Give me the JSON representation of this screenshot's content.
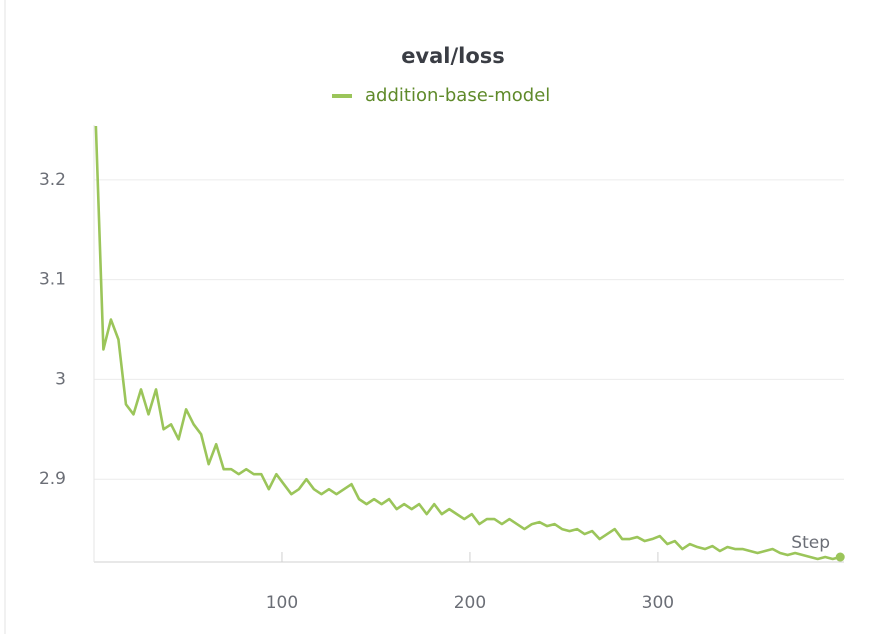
{
  "chart_data": {
    "type": "line",
    "title": "eval/loss",
    "xlabel": "Step",
    "x": [
      1,
      5,
      9,
      13,
      17,
      21,
      25,
      29,
      33,
      37,
      41,
      45,
      49,
      53,
      57,
      61,
      65,
      69,
      73,
      77,
      81,
      85,
      89,
      93,
      97,
      101,
      105,
      109,
      113,
      117,
      121,
      125,
      129,
      133,
      137,
      141,
      145,
      149,
      153,
      157,
      161,
      165,
      169,
      173,
      177,
      181,
      185,
      189,
      193,
      197,
      201,
      205,
      209,
      213,
      217,
      221,
      225,
      229,
      233,
      237,
      241,
      245,
      249,
      253,
      257,
      261,
      265,
      269,
      273,
      277,
      281,
      285,
      289,
      293,
      297,
      301,
      305,
      309,
      313,
      317,
      321,
      325,
      329,
      333,
      337,
      341,
      345,
      349,
      353,
      357,
      361,
      365,
      369,
      373,
      377,
      381,
      385,
      389,
      393,
      397
    ],
    "series": [
      {
        "name": "addition-base-model",
        "color": "#9bc55a",
        "values": [
          3.254,
          3.03,
          3.06,
          3.04,
          2.975,
          2.965,
          2.99,
          2.965,
          2.99,
          2.95,
          2.955,
          2.94,
          2.97,
          2.955,
          2.945,
          2.915,
          2.935,
          2.91,
          2.91,
          2.905,
          2.91,
          2.905,
          2.905,
          2.89,
          2.905,
          2.895,
          2.885,
          2.89,
          2.9,
          2.89,
          2.885,
          2.89,
          2.885,
          2.89,
          2.895,
          2.88,
          2.875,
          2.88,
          2.875,
          2.88,
          2.87,
          2.875,
          2.87,
          2.875,
          2.865,
          2.875,
          2.865,
          2.87,
          2.865,
          2.86,
          2.865,
          2.855,
          2.86,
          2.86,
          2.855,
          2.86,
          2.855,
          2.85,
          2.855,
          2.857,
          2.853,
          2.855,
          2.85,
          2.848,
          2.85,
          2.845,
          2.848,
          2.84,
          2.845,
          2.85,
          2.84,
          2.84,
          2.842,
          2.838,
          2.84,
          2.843,
          2.835,
          2.838,
          2.83,
          2.835,
          2.832,
          2.83,
          2.833,
          2.828,
          2.832,
          2.83,
          2.83,
          2.828,
          2.826,
          2.828,
          2.83,
          2.826,
          2.824,
          2.826,
          2.824,
          2.822,
          2.82,
          2.822,
          2.82,
          2.822
        ]
      }
    ],
    "xlim": [
      0,
      399
    ],
    "ylim": [
      2.817,
      3.255
    ],
    "xticks": [
      100,
      200,
      300
    ],
    "yticks": [
      2.9,
      3,
      3.1,
      3.2
    ],
    "grid": true
  }
}
